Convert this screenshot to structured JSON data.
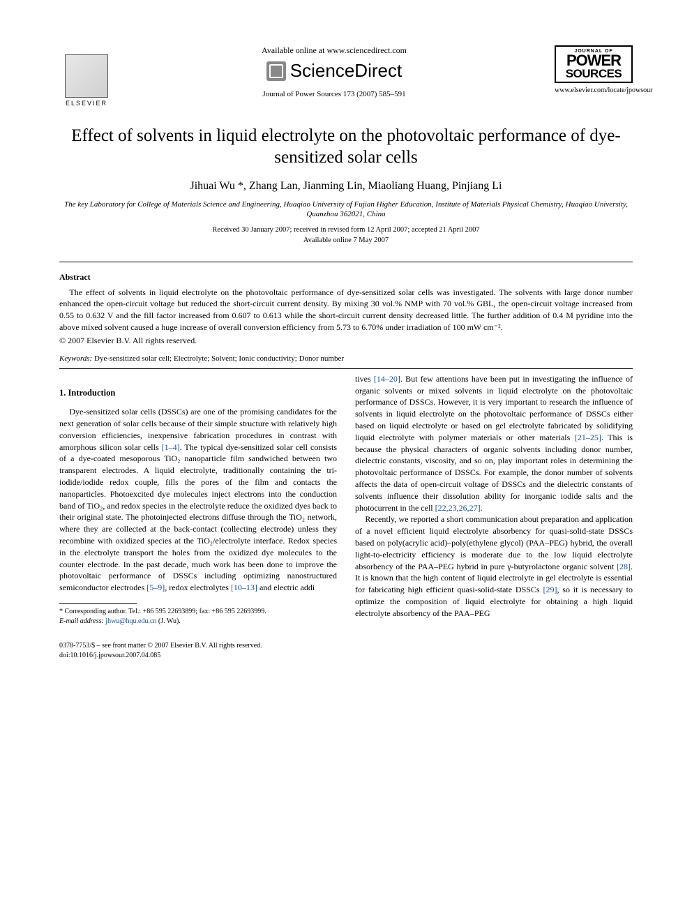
{
  "header": {
    "publisher": "ELSEVIER",
    "available_online": "Available online at www.sciencedirect.com",
    "sd_brand": "ScienceDirect",
    "journal_ref": "Journal of Power Sources 173 (2007) 585–591",
    "journal_logo_top": "JOURNAL OF",
    "journal_logo_mid": "POWER",
    "journal_logo_bot": "SOURCES",
    "journal_url": "www.elsevier.com/locate/jpowsour"
  },
  "title": "Effect of solvents in liquid electrolyte on the photovoltaic performance of dye-sensitized solar cells",
  "authors": "Jihuai Wu *, Zhang Lan, Jianming Lin, Miaoliang Huang, Pinjiang Li",
  "affiliation": "The key Laboratory for College of Materials Science and Engineering, Huaqiao University of Fujian Higher Education, Institute of Materials Physical Chemistry, Huaqiao University, Quanzhou 362021, China",
  "dates_line1": "Received 30 January 2007; received in revised form 12 April 2007; accepted 21 April 2007",
  "dates_line2": "Available online 7 May 2007",
  "abstract": {
    "heading": "Abstract",
    "body": "The effect of solvents in liquid electrolyte on the photovoltaic performance of dye-sensitized solar cells was investigated. The solvents with large donor number enhanced the open-circuit voltage but reduced the short-circuit current density. By mixing 30 vol.% NMP with 70 vol.% GBL, the open-circuit voltage increased from 0.55 to 0.632 V and the fill factor increased from 0.607 to 0.613 while the short-circuit current density decreased little. The further addition of 0.4 M pyridine into the above mixed solvent caused a huge increase of overall conversion efficiency from 5.73 to 6.70% under irradiation of 100 mW cm⁻².",
    "copyright": "© 2007 Elsevier B.V. All rights reserved."
  },
  "keywords": {
    "label": "Keywords:",
    "list": "Dye-sensitized solar cell; Electrolyte; Solvent; Ionic conductivity; Donor number"
  },
  "section1": {
    "heading": "1. Introduction",
    "para1a": "Dye-sensitized solar cells (DSSCs) are one of the promising candidates for the next generation of solar cells because of their simple structure with relatively high conversion efficiencies, inexpensive fabrication procedures in contrast with amorphous silicon solar cells ",
    "ref1": "[1–4]",
    "para1b": ". The typical dye-sensitized solar cell consists of a dye-coated mesoporous TiO₂ nanoparticle film sandwiched between two transparent electrodes. A liquid electrolyte, traditionally containing the tri-iodide/iodide redox couple, fills the pores of the film and contacts the nanoparticles. Photoexcited dye molecules inject electrons into the conduction band of TiO₂, and redox species in the electrolyte reduce the oxidized dyes back to their original state. The photoinjected electrons diffuse through the TiO₂ network, where they are collected at the back-contact (collecting electrode) unless they recombine with oxidized species at the TiO₂/electrolyte interface. Redox species in the electrolyte transport the holes from the oxidized dye molecules to the counter electrode. In the past decade, much work has been done to improve the photovoltaic performance of DSSCs including optimizing nanostructured semiconductor electrodes ",
    "ref2": "[5–9]",
    "para1c": ", redox electrolytes ",
    "ref3": "[10–13]",
    "para1d": " and electric addi",
    "para2a": "tives ",
    "ref4": "[14–20]",
    "para2b": ". But few attentions have been put in investigating the influence of organic solvents or mixed solvents in liquid electrolyte on the photovoltaic performance of DSSCs. However, it is very important to research the influence of solvents in liquid electrolyte on the photovoltaic performance of DSSCs either based on liquid electrolyte or based on gel electrolyte fabricated by solidifying liquid electrolyte with polymer materials or other materials ",
    "ref5": "[21–25]",
    "para2c": ". This is because the physical characters of organic solvents including donor number, dielectric constants, viscosity, and so on, play important roles in determining the photovoltaic performance of DSSCs. For example, the donor number of solvents affects the data of open-circuit voltage of DSSCs and the dielectric constants of solvents influence their dissolution ability for inorganic iodide salts and the photocurrent in the cell ",
    "ref6": "[22,23,26,27]",
    "para2d": ".",
    "para3a": "Recently, we reported a short communication about preparation and application of a novel efficient liquid electrolyte absorbency for quasi-solid-state DSSCs based on poly(acrylic acid)–poly(ethylene glycol) (PAA–PEG) hybrid, the overall light-to-electricity efficiency is moderate due to the low liquid electrolyte absorbency of the PAA–PEG hybrid in pure γ-butyrolactone organic solvent ",
    "ref7": "[28]",
    "para3b": ". It is known that the high content of liquid electrolyte in gel electrolyte is essential for fabricating high efficient quasi-solid-state DSSCs ",
    "ref8": "[29]",
    "para3c": ", so it is necessary to optimize the composition of liquid electrolyte for obtaining a high liquid electrolyte absorbency of the PAA–PEG"
  },
  "footnote": {
    "corr": "* Corresponding author. Tel.: +86 595 22693899; fax: +86 595 22693999.",
    "email_label": "E-mail address:",
    "email": "jhwu@hqu.edu.cn",
    "email_who": "(J. Wu)."
  },
  "footer": {
    "issn": "0378-7753/$ – see front matter © 2007 Elsevier B.V. All rights reserved.",
    "doi": "doi:10.1016/j.jpowsour.2007.04.085"
  }
}
